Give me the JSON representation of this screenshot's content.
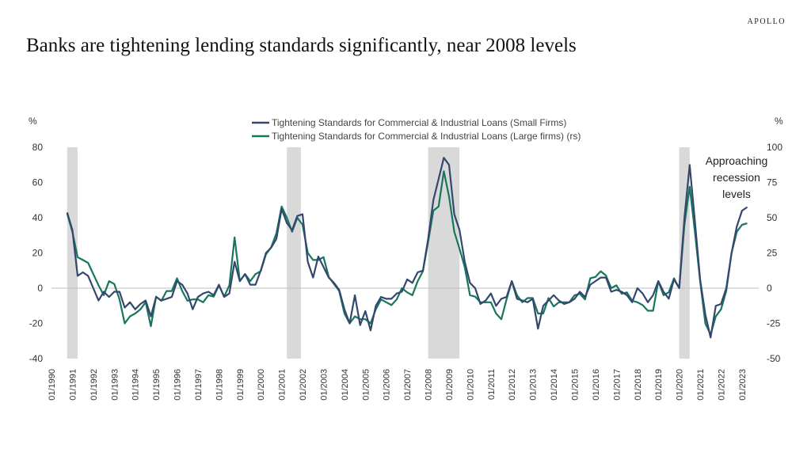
{
  "brand": "APOLLO",
  "title": "Banks are tightening lending standards significantly, near 2008 levels",
  "colors": {
    "small_firms": "#34486e",
    "large_firms": "#16765e",
    "recession": "#d9d9d9"
  },
  "chart_data": {
    "type": "line",
    "y_left_unit": "%",
    "y_right_unit": "%",
    "ylim_left": [
      -40,
      80
    ],
    "ylim_right": [
      -50,
      100
    ],
    "y_left_ticks": [
      80,
      60,
      40,
      20,
      0,
      -20,
      -40
    ],
    "y_right_ticks": [
      100,
      75,
      50,
      25,
      0,
      -25,
      -50
    ],
    "x_range": [
      1990.0,
      2023.8
    ],
    "x_tick_labels": [
      "01/1990",
      "01/1991",
      "01/1992",
      "01/1993",
      "01/1994",
      "01/1995",
      "01/1996",
      "01/1997",
      "01/1998",
      "01/1999",
      "01/2000",
      "01/2001",
      "01/2002",
      "01/2003",
      "01/2004",
      "01/2005",
      "01/2006",
      "01/2007",
      "01/2008",
      "01/2009",
      "01/2010",
      "01/2011",
      "01/2012",
      "01/2013",
      "01/2014",
      "01/2015",
      "01/2016",
      "01/2017",
      "01/2018",
      "01/2019",
      "01/2020",
      "01/2021",
      "01/2022",
      "01/2023"
    ],
    "recession_periods": [
      [
        1990.75,
        1991.25
      ],
      [
        2001.25,
        2001.92
      ],
      [
        2008.0,
        2009.5
      ],
      [
        2020.0,
        2020.5
      ]
    ],
    "legend": [
      "Tightening Standards for Commercial & Industrial Loans (Small Firms)",
      "Tightening Standards for Commercial & Industrial Loans (Large firms) (rs)"
    ],
    "annotation": [
      "Approaching",
      "recession",
      "levels"
    ],
    "series": [
      {
        "name": "Tightening Standards for Commercial & Industrial Loans (Small Firms)",
        "axis": "left",
        "points": [
          [
            1990.75,
            43
          ],
          [
            1991.0,
            33
          ],
          [
            1991.25,
            7
          ],
          [
            1991.5,
            9
          ],
          [
            1991.75,
            7
          ],
          [
            1992.0,
            0
          ],
          [
            1992.25,
            -7
          ],
          [
            1992.5,
            -2
          ],
          [
            1992.75,
            -5
          ],
          [
            1993.0,
            -2
          ],
          [
            1993.25,
            -2
          ],
          [
            1993.5,
            -11
          ],
          [
            1993.75,
            -8
          ],
          [
            1994.0,
            -12
          ],
          [
            1994.25,
            -9
          ],
          [
            1994.5,
            -7
          ],
          [
            1994.75,
            -16
          ],
          [
            1995.0,
            -5
          ],
          [
            1995.25,
            -7
          ],
          [
            1995.5,
            -6
          ],
          [
            1995.75,
            -5
          ],
          [
            1996.0,
            4
          ],
          [
            1996.25,
            2
          ],
          [
            1996.5,
            -3
          ],
          [
            1996.75,
            -12
          ],
          [
            1997.0,
            -5
          ],
          [
            1997.25,
            -3
          ],
          [
            1997.5,
            -2
          ],
          [
            1997.75,
            -4
          ],
          [
            1998.0,
            2
          ],
          [
            1998.25,
            -5
          ],
          [
            1998.5,
            -3
          ],
          [
            1998.75,
            15
          ],
          [
            1999.0,
            4
          ],
          [
            1999.25,
            8
          ],
          [
            1999.5,
            2
          ],
          [
            1999.75,
            2
          ],
          [
            2000.0,
            10
          ],
          [
            2000.25,
            20
          ],
          [
            2000.5,
            23
          ],
          [
            2000.75,
            28
          ],
          [
            2001.0,
            45
          ],
          [
            2001.25,
            37
          ],
          [
            2001.5,
            33
          ],
          [
            2001.75,
            41
          ],
          [
            2002.0,
            42
          ],
          [
            2002.25,
            15
          ],
          [
            2002.5,
            6
          ],
          [
            2002.75,
            18
          ],
          [
            2003.0,
            12
          ],
          [
            2003.25,
            6
          ],
          [
            2003.5,
            3
          ],
          [
            2003.75,
            -1
          ],
          [
            2004.0,
            -12
          ],
          [
            2004.25,
            -20
          ],
          [
            2004.5,
            -4
          ],
          [
            2004.75,
            -21
          ],
          [
            2005.0,
            -13
          ],
          [
            2005.25,
            -24
          ],
          [
            2005.5,
            -10
          ],
          [
            2005.75,
            -5
          ],
          [
            2006.0,
            -6
          ],
          [
            2006.25,
            -6
          ],
          [
            2006.5,
            -3
          ],
          [
            2006.75,
            -2
          ],
          [
            2007.0,
            5
          ],
          [
            2007.25,
            3
          ],
          [
            2007.5,
            9
          ],
          [
            2007.75,
            10
          ],
          [
            2008.0,
            28
          ],
          [
            2008.25,
            50
          ],
          [
            2008.5,
            62
          ],
          [
            2008.75,
            74
          ],
          [
            2009.0,
            70
          ],
          [
            2009.25,
            42
          ],
          [
            2009.5,
            33
          ],
          [
            2009.75,
            15
          ],
          [
            2010.0,
            3
          ],
          [
            2010.25,
            0
          ],
          [
            2010.5,
            -9
          ],
          [
            2010.75,
            -7
          ],
          [
            2011.0,
            -3
          ],
          [
            2011.25,
            -10
          ],
          [
            2011.5,
            -6
          ],
          [
            2011.75,
            -5
          ],
          [
            2012.0,
            4
          ],
          [
            2012.25,
            -6
          ],
          [
            2012.5,
            -7
          ],
          [
            2012.75,
            -8
          ],
          [
            2013.0,
            -6
          ],
          [
            2013.25,
            -23
          ],
          [
            2013.5,
            -10
          ],
          [
            2013.75,
            -7
          ],
          [
            2014.0,
            -4
          ],
          [
            2014.25,
            -7
          ],
          [
            2014.5,
            -9
          ],
          [
            2014.75,
            -8
          ],
          [
            2015.0,
            -6
          ],
          [
            2015.25,
            -2
          ],
          [
            2015.5,
            -5
          ],
          [
            2015.75,
            2
          ],
          [
            2016.0,
            4
          ],
          [
            2016.25,
            6
          ],
          [
            2016.5,
            6
          ],
          [
            2016.75,
            -2
          ],
          [
            2017.0,
            -1
          ],
          [
            2017.25,
            -2
          ],
          [
            2017.5,
            -4
          ],
          [
            2017.75,
            -8
          ],
          [
            2018.0,
            0
          ],
          [
            2018.25,
            -3
          ],
          [
            2018.5,
            -8
          ],
          [
            2018.75,
            -4
          ],
          [
            2019.0,
            4
          ],
          [
            2019.25,
            -2
          ],
          [
            2019.5,
            -6
          ],
          [
            2019.75,
            5
          ],
          [
            2020.0,
            0
          ],
          [
            2020.25,
            40
          ],
          [
            2020.5,
            70
          ],
          [
            2020.75,
            38
          ],
          [
            2021.0,
            5
          ],
          [
            2021.25,
            -15
          ],
          [
            2021.5,
            -28
          ],
          [
            2021.75,
            -10
          ],
          [
            2022.0,
            -9
          ],
          [
            2022.25,
            0
          ],
          [
            2022.5,
            20
          ],
          [
            2022.75,
            35
          ],
          [
            2023.0,
            44
          ],
          [
            2023.25,
            46
          ]
        ]
      },
      {
        "name": "Tightening Standards for Commercial & Industrial Loans (Large firms) (rs)",
        "axis": "right",
        "points": [
          [
            1990.75,
            53
          ],
          [
            1991.0,
            40
          ],
          [
            1991.25,
            22
          ],
          [
            1991.5,
            20
          ],
          [
            1991.75,
            18
          ],
          [
            1992.0,
            10
          ],
          [
            1992.25,
            2
          ],
          [
            1992.5,
            -5
          ],
          [
            1992.75,
            5
          ],
          [
            1993.0,
            3
          ],
          [
            1993.25,
            -8
          ],
          [
            1993.5,
            -25
          ],
          [
            1993.75,
            -20
          ],
          [
            1994.0,
            -18
          ],
          [
            1994.25,
            -15
          ],
          [
            1994.5,
            -10
          ],
          [
            1994.75,
            -27
          ],
          [
            1995.0,
            -6
          ],
          [
            1995.25,
            -9
          ],
          [
            1995.5,
            -2
          ],
          [
            1995.75,
            -2
          ],
          [
            1996.0,
            7
          ],
          [
            1996.25,
            -2
          ],
          [
            1996.5,
            -9
          ],
          [
            1996.75,
            -8
          ],
          [
            1997.0,
            -8
          ],
          [
            1997.25,
            -10
          ],
          [
            1997.5,
            -5
          ],
          [
            1997.75,
            -6
          ],
          [
            1998.0,
            2
          ],
          [
            1998.25,
            -6
          ],
          [
            1998.5,
            2
          ],
          [
            1998.75,
            36
          ],
          [
            1999.0,
            5
          ],
          [
            1999.25,
            10
          ],
          [
            1999.5,
            5
          ],
          [
            1999.75,
            10
          ],
          [
            2000.0,
            12
          ],
          [
            2000.25,
            24
          ],
          [
            2000.5,
            29
          ],
          [
            2000.75,
            39
          ],
          [
            2001.0,
            58
          ],
          [
            2001.25,
            50
          ],
          [
            2001.5,
            40
          ],
          [
            2001.75,
            50
          ],
          [
            2002.0,
            45
          ],
          [
            2002.25,
            25
          ],
          [
            2002.5,
            20
          ],
          [
            2002.75,
            20
          ],
          [
            2003.0,
            22
          ],
          [
            2003.25,
            8
          ],
          [
            2003.5,
            3
          ],
          [
            2003.75,
            -2
          ],
          [
            2004.0,
            -18
          ],
          [
            2004.25,
            -25
          ],
          [
            2004.5,
            -20
          ],
          [
            2004.75,
            -22
          ],
          [
            2005.0,
            -22
          ],
          [
            2005.25,
            -25
          ],
          [
            2005.5,
            -15
          ],
          [
            2005.75,
            -8
          ],
          [
            2006.0,
            -10
          ],
          [
            2006.25,
            -12
          ],
          [
            2006.5,
            -8
          ],
          [
            2006.75,
            0
          ],
          [
            2007.0,
            -3
          ],
          [
            2007.25,
            -5
          ],
          [
            2007.5,
            5
          ],
          [
            2007.75,
            12
          ],
          [
            2008.0,
            33
          ],
          [
            2008.25,
            55
          ],
          [
            2008.5,
            58
          ],
          [
            2008.75,
            83
          ],
          [
            2009.0,
            65
          ],
          [
            2009.25,
            40
          ],
          [
            2009.5,
            28
          ],
          [
            2009.75,
            15
          ],
          [
            2010.0,
            -5
          ],
          [
            2010.25,
            -6
          ],
          [
            2010.5,
            -10
          ],
          [
            2010.75,
            -10
          ],
          [
            2011.0,
            -10
          ],
          [
            2011.25,
            -18
          ],
          [
            2011.5,
            -22
          ],
          [
            2011.75,
            -8
          ],
          [
            2012.0,
            5
          ],
          [
            2012.25,
            -5
          ],
          [
            2012.5,
            -10
          ],
          [
            2012.75,
            -7
          ],
          [
            2013.0,
            -7
          ],
          [
            2013.25,
            -18
          ],
          [
            2013.5,
            -18
          ],
          [
            2013.75,
            -7
          ],
          [
            2014.0,
            -13
          ],
          [
            2014.25,
            -10
          ],
          [
            2014.5,
            -10
          ],
          [
            2014.75,
            -10
          ],
          [
            2015.0,
            -5
          ],
          [
            2015.25,
            -4
          ],
          [
            2015.5,
            -8
          ],
          [
            2015.75,
            7
          ],
          [
            2016.0,
            8
          ],
          [
            2016.25,
            12
          ],
          [
            2016.5,
            9
          ],
          [
            2016.75,
            0
          ],
          [
            2017.0,
            2
          ],
          [
            2017.25,
            -4
          ],
          [
            2017.5,
            -3
          ],
          [
            2017.75,
            -9
          ],
          [
            2018.0,
            -10
          ],
          [
            2018.25,
            -12
          ],
          [
            2018.5,
            -16
          ],
          [
            2018.75,
            -16
          ],
          [
            2019.0,
            5
          ],
          [
            2019.25,
            -5
          ],
          [
            2019.5,
            -3
          ],
          [
            2019.75,
            7
          ],
          [
            2020.0,
            0
          ],
          [
            2020.25,
            45
          ],
          [
            2020.5,
            72
          ],
          [
            2020.75,
            40
          ],
          [
            2021.0,
            5
          ],
          [
            2021.25,
            -25
          ],
          [
            2021.5,
            -33
          ],
          [
            2021.75,
            -20
          ],
          [
            2022.0,
            -15
          ],
          [
            2022.25,
            -2
          ],
          [
            2022.5,
            25
          ],
          [
            2022.75,
            40
          ],
          [
            2023.0,
            45
          ],
          [
            2023.25,
            46
          ]
        ]
      }
    ]
  }
}
